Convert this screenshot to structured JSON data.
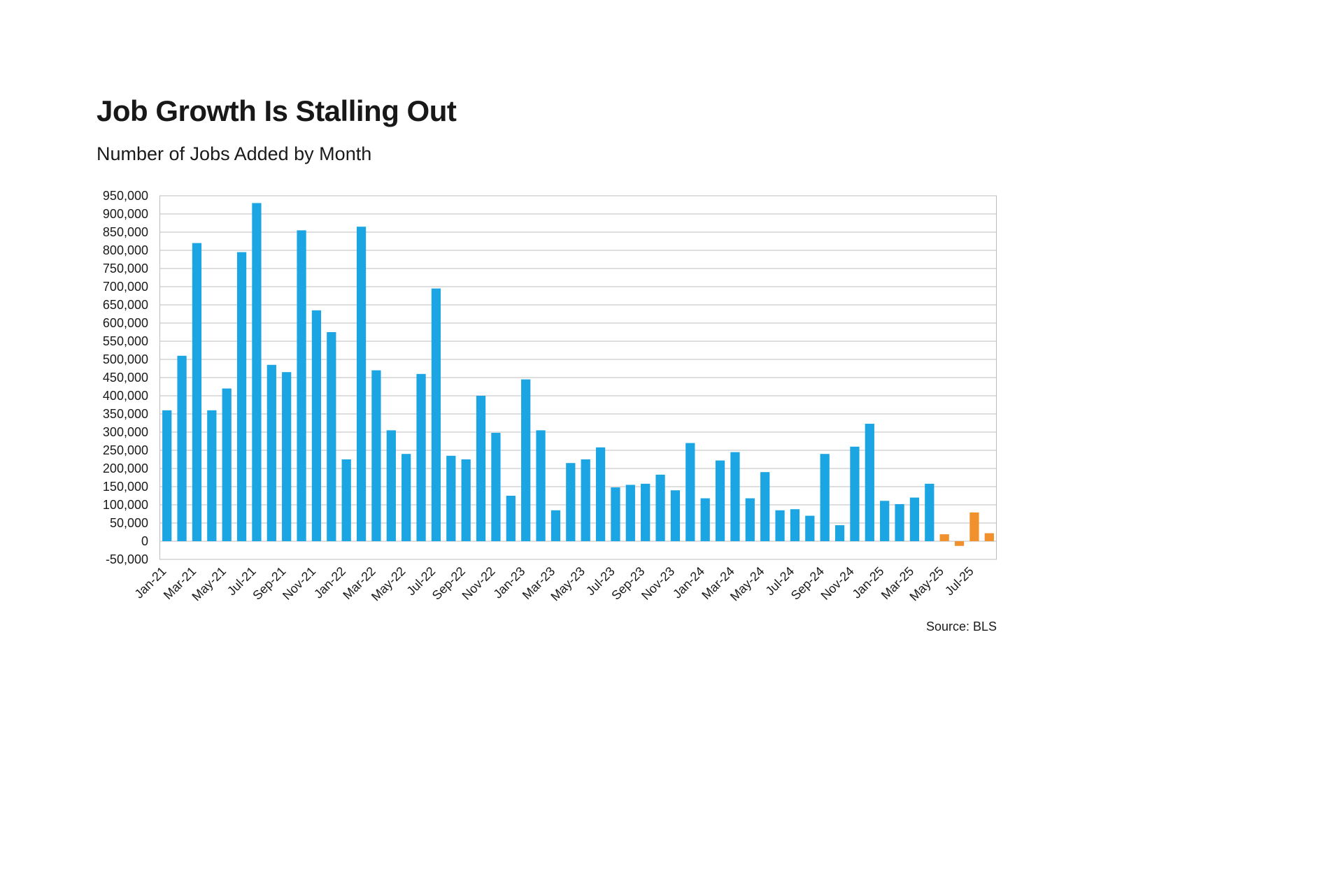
{
  "page": {
    "title": "Job Growth Is Stalling Out",
    "subtitle": "Number of Jobs Added by Month",
    "source": "Source: BLS"
  },
  "colors": {
    "bar_blue": "#1BA6E3",
    "bar_highlight_orange": "#F0912D",
    "gridline": "#BDBDBD",
    "text": "#1A1A1A"
  },
  "chart_data": {
    "type": "bar",
    "title": "Job Growth Is Stalling Out",
    "subtitle": "Number of Jobs Added by Month",
    "source": "Source: BLS",
    "xlabel": "",
    "ylabel": "",
    "ylim": [
      -50000,
      950000
    ],
    "ytick_step": 50000,
    "grid": true,
    "legend": "none",
    "x_tick_every": 2,
    "highlight_start_index": 52,
    "categories": [
      "Jan-21",
      "Feb-21",
      "Mar-21",
      "Apr-21",
      "May-21",
      "Jun-21",
      "Jul-21",
      "Aug-21",
      "Sep-21",
      "Oct-21",
      "Nov-21",
      "Dec-21",
      "Jan-22",
      "Feb-22",
      "Mar-22",
      "Apr-22",
      "May-22",
      "Jun-22",
      "Jul-22",
      "Aug-22",
      "Sep-22",
      "Oct-22",
      "Nov-22",
      "Dec-22",
      "Jan-23",
      "Feb-23",
      "Mar-23",
      "Apr-23",
      "May-23",
      "Jun-23",
      "Jul-23",
      "Aug-23",
      "Sep-23",
      "Oct-23",
      "Nov-23",
      "Dec-23",
      "Jan-24",
      "Feb-24",
      "Mar-24",
      "Apr-24",
      "May-24",
      "Jun-24",
      "Jul-24",
      "Aug-24",
      "Sep-24",
      "Oct-24",
      "Nov-24",
      "Dec-24",
      "Jan-25",
      "Feb-25",
      "Mar-25",
      "Apr-25",
      "May-25",
      "Jun-25",
      "Jul-25",
      "Aug-25"
    ],
    "values": [
      360000,
      510000,
      820000,
      360000,
      420000,
      795000,
      930000,
      485000,
      465000,
      855000,
      635000,
      575000,
      225000,
      865000,
      470000,
      305000,
      240000,
      460000,
      695000,
      235000,
      225000,
      400000,
      298000,
      125000,
      445000,
      305000,
      85000,
      215000,
      225000,
      258000,
      148000,
      155000,
      158000,
      183000,
      140000,
      270000,
      118000,
      222000,
      245000,
      118000,
      190000,
      85000,
      88000,
      70000,
      240000,
      44000,
      260000,
      323000,
      111000,
      102000,
      120000,
      158000,
      19000,
      -13000,
      79000,
      22000
    ]
  }
}
